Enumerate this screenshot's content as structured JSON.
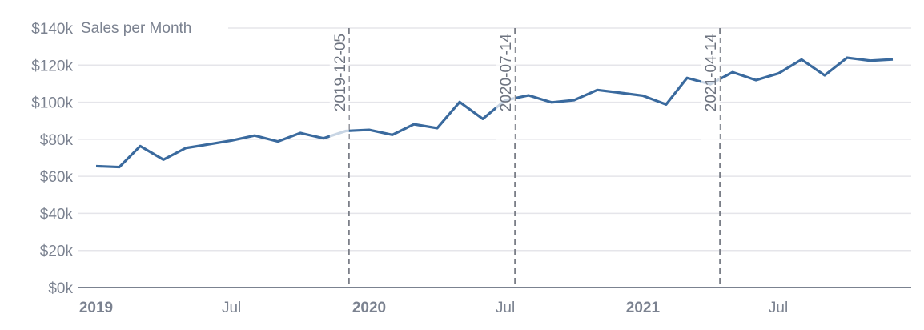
{
  "chart_data": {
    "type": "line",
    "title": "Sales per Month",
    "xlabel": "",
    "ylabel": "",
    "ylim": [
      0,
      140000
    ],
    "yticks": [
      0,
      20000,
      40000,
      60000,
      80000,
      100000,
      120000,
      140000
    ],
    "ytick_labels": [
      "$0k",
      "$20k",
      "$40k",
      "$60k",
      "$80k",
      "$100k",
      "$120k",
      "$140k"
    ],
    "xlim": [
      "2019-01-01",
      "2021-12-01"
    ],
    "xticks": [
      {
        "date": "2019-01-01",
        "label": "2019",
        "bold": true
      },
      {
        "date": "2019-07-01",
        "label": "Jul",
        "bold": false
      },
      {
        "date": "2020-01-01",
        "label": "2020",
        "bold": true
      },
      {
        "date": "2020-07-01",
        "label": "Jul",
        "bold": false
      },
      {
        "date": "2021-01-01",
        "label": "2021",
        "bold": true
      },
      {
        "date": "2021-07-01",
        "label": "Jul",
        "bold": false
      }
    ],
    "grid": true,
    "series": [
      {
        "color": "#3a6a9e",
        "x": [
          "2019-01-01",
          "2019-02-01",
          "2019-03-01",
          "2019-04-01",
          "2019-05-01",
          "2019-06-01",
          "2019-07-01",
          "2019-08-01",
          "2019-09-01",
          "2019-10-01",
          "2019-11-01",
          "2019-12-01",
          "2020-01-01",
          "2020-02-01",
          "2020-03-01",
          "2020-04-01",
          "2020-05-01",
          "2020-06-01",
          "2020-07-01",
          "2020-08-01",
          "2020-09-01",
          "2020-10-01",
          "2020-11-01",
          "2020-12-01",
          "2021-01-01",
          "2021-02-01",
          "2021-03-01",
          "2021-04-01",
          "2021-05-01",
          "2021-06-01",
          "2021-07-01",
          "2021-08-01",
          "2021-09-01",
          "2021-10-01",
          "2021-11-01",
          "2021-12-01"
        ],
        "values": [
          65500,
          65000,
          76300,
          69000,
          75300,
          77300,
          79300,
          82000,
          78800,
          83400,
          80500,
          84500,
          85100,
          82400,
          88100,
          86000,
          100100,
          91000,
          101100,
          103700,
          99900,
          101100,
          106600,
          105100,
          103500,
          98800,
          113100,
          109700,
          116200,
          111900,
          115500,
          123000,
          114500,
          124000,
          122400,
          123100
        ]
      }
    ],
    "annotations": [
      {
        "date": "2019-12-05",
        "label": "2019-12-05"
      },
      {
        "date": "2020-07-14",
        "label": "2020-07-14"
      },
      {
        "date": "2021-04-14",
        "label": "2021-04-14"
      }
    ],
    "colors": {
      "line": "#3a6a9e",
      "text": "#7b8290",
      "grid": "#e5e5ea",
      "axis": "#7b8290",
      "annotation": "#7b7f88"
    }
  }
}
